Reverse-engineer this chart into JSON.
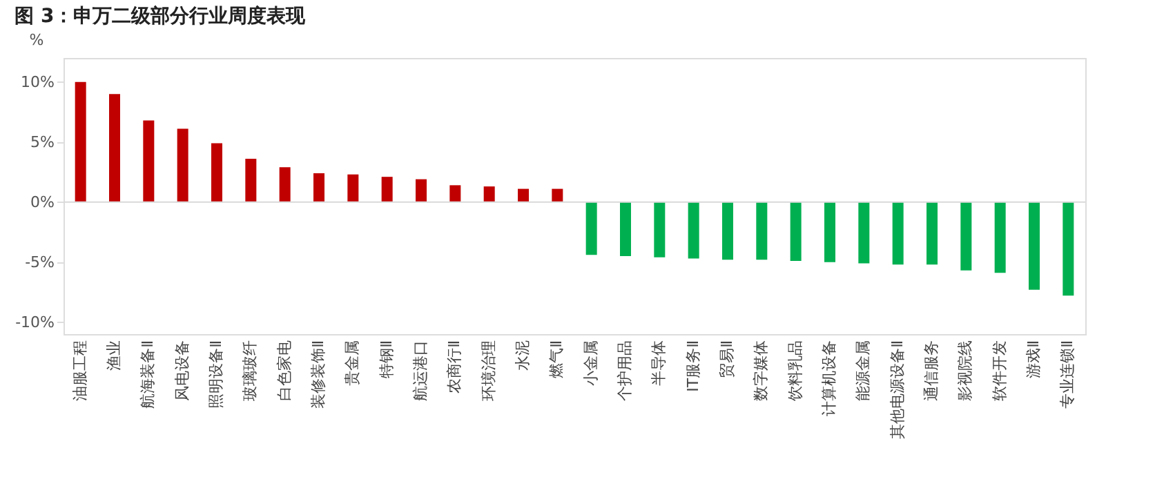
{
  "chart_data": {
    "type": "bar",
    "title": "图 3：申万二级部分行业周度表现",
    "ylabel": "%",
    "categories": [
      "油服工程",
      "渔业",
      "航海装备Ⅱ",
      "风电设备",
      "照明设备Ⅱ",
      "玻璃玻纤",
      "白色家电",
      "装修装饰Ⅱ",
      "贵金属",
      "特钢Ⅱ",
      "航运港口",
      "农商行Ⅱ",
      "环境治理",
      "水泥",
      "燃气Ⅱ",
      "小金属",
      "个护用品",
      "半导体",
      "IT服务Ⅱ",
      "贸易Ⅱ",
      "数字媒体",
      "饮料乳品",
      "计算机设备",
      "能源金属",
      "其他电源设备Ⅱ",
      "通信服务",
      "影视院线",
      "软件开发",
      "游戏Ⅱ",
      "专业连锁Ⅱ"
    ],
    "values": [
      10.0,
      9.0,
      6.8,
      6.1,
      4.9,
      3.6,
      2.9,
      2.4,
      2.3,
      2.1,
      1.9,
      1.4,
      1.3,
      1.1,
      1.1,
      -4.4,
      -4.5,
      -4.6,
      -4.7,
      -4.8,
      -4.8,
      -4.9,
      -5.0,
      -5.1,
      -5.2,
      -5.2,
      -5.7,
      -5.9,
      -7.3,
      -7.8
    ],
    "colors": [
      "#c00000",
      "#c00000",
      "#c00000",
      "#c00000",
      "#c00000",
      "#c00000",
      "#c00000",
      "#c00000",
      "#c00000",
      "#c00000",
      "#c00000",
      "#c00000",
      "#c00000",
      "#c00000",
      "#c00000",
      "#00b050",
      "#00b050",
      "#00b050",
      "#00b050",
      "#00b050",
      "#00b050",
      "#00b050",
      "#00b050",
      "#00b050",
      "#00b050",
      "#00b050",
      "#00b050",
      "#00b050",
      "#00b050",
      "#00b050"
    ],
    "ylim": [
      -11,
      12
    ],
    "yticks": [
      {
        "value": -10,
        "label": "-10%"
      },
      {
        "value": -5,
        "label": "-5%"
      },
      {
        "value": 0,
        "label": "0%"
      },
      {
        "value": 5,
        "label": "5%"
      },
      {
        "value": 10,
        "label": "10%"
      }
    ]
  }
}
